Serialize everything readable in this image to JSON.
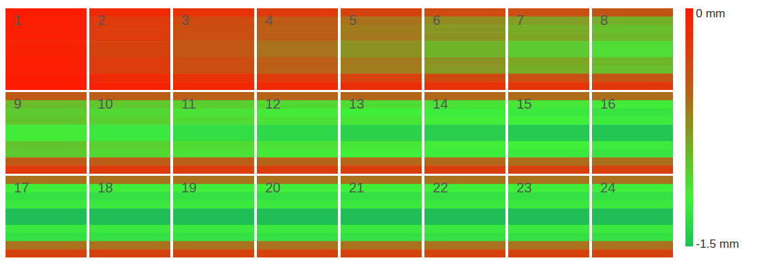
{
  "chart_data": {
    "type": "heatmap",
    "panels": [
      {
        "label": "1",
        "cells": [
          -0.02,
          -0.04,
          -0.04,
          -0.04,
          -0.05,
          -0.05,
          -0.04,
          -0.04,
          -0.02,
          -0.01
        ]
      },
      {
        "label": "2",
        "cells": [
          -0.12,
          -0.24,
          -0.26,
          -0.25,
          -0.3,
          -0.3,
          -0.25,
          -0.26,
          -0.12,
          -0.06
        ]
      },
      {
        "label": "3",
        "cells": [
          -0.18,
          -0.36,
          -0.39,
          -0.38,
          -0.45,
          -0.45,
          -0.38,
          -0.39,
          -0.18,
          -0.09
        ]
      },
      {
        "label": "4",
        "cells": [
          -0.24,
          -0.48,
          -0.52,
          -0.5,
          -0.6,
          -0.6,
          -0.5,
          -0.52,
          -0.24,
          -0.12
        ]
      },
      {
        "label": "5",
        "cells": [
          -0.3,
          -0.6,
          -0.65,
          -0.63,
          -0.75,
          -0.75,
          -0.63,
          -0.65,
          -0.3,
          -0.15
        ]
      },
      {
        "label": "6",
        "cells": [
          -0.36,
          -0.72,
          -0.78,
          -0.75,
          -0.9,
          -0.9,
          -0.75,
          -0.78,
          -0.36,
          -0.18
        ]
      },
      {
        "label": "7",
        "cells": [
          -0.4,
          -0.8,
          -0.87,
          -0.84,
          -1.01,
          -1.01,
          -0.84,
          -0.87,
          -0.4,
          -0.2
        ]
      },
      {
        "label": "8",
        "cells": [
          -0.44,
          -0.88,
          -0.95,
          -0.91,
          -1.1,
          -1.1,
          -0.91,
          -0.95,
          -0.44,
          -0.22
        ]
      },
      {
        "label": "9",
        "cells": [
          -0.47,
          -0.94,
          -1.01,
          -0.98,
          -1.17,
          -1.17,
          -0.98,
          -1.01,
          -0.47,
          -0.23
        ]
      },
      {
        "label": "10",
        "cells": [
          -0.5,
          -1,
          -1.08,
          -1.04,
          -1.25,
          -1.25,
          -1.04,
          -1.08,
          -0.5,
          -0.25
        ]
      },
      {
        "label": "11",
        "cells": [
          -0.52,
          -1.04,
          -1.13,
          -1.09,
          -1.31,
          -1.31,
          -1.09,
          -1.13,
          -0.52,
          -0.26
        ]
      },
      {
        "label": "12",
        "cells": [
          -0.54,
          -1.08,
          -1.17,
          -1.13,
          -1.35,
          -1.35,
          -1.13,
          -1.17,
          -0.54,
          -0.27
        ]
      },
      {
        "label": "13",
        "cells": [
          -0.55,
          -1.1,
          -1.2,
          -1.15,
          -1.38,
          -1.38,
          -1.15,
          -1.2,
          -0.55,
          -0.28
        ]
      },
      {
        "label": "14",
        "cells": [
          -0.56,
          -1.13,
          -1.22,
          -1.18,
          -1.41,
          -1.41,
          -1.18,
          -1.22,
          -0.56,
          -0.28
        ]
      },
      {
        "label": "15",
        "cells": [
          -0.58,
          -1.15,
          -1.25,
          -1.2,
          -1.44,
          -1.44,
          -1.2,
          -1.25,
          -0.58,
          -0.29
        ]
      },
      {
        "label": "16",
        "cells": [
          -0.59,
          -1.18,
          -1.27,
          -1.23,
          -1.47,
          -1.47,
          -1.23,
          -1.27,
          -0.59,
          -0.29
        ]
      },
      {
        "label": "17",
        "cells": [
          -0.6,
          -1.2,
          -1.3,
          -1.25,
          -1.5,
          -1.5,
          -1.25,
          -1.3,
          -0.6,
          -0.3
        ]
      },
      {
        "label": "18",
        "cells": [
          -0.6,
          -1.2,
          -1.3,
          -1.25,
          -1.5,
          -1.5,
          -1.25,
          -1.3,
          -0.6,
          -0.3
        ]
      },
      {
        "label": "19",
        "cells": [
          -0.6,
          -1.2,
          -1.3,
          -1.25,
          -1.5,
          -1.5,
          -1.25,
          -1.3,
          -0.6,
          -0.3
        ]
      },
      {
        "label": "20",
        "cells": [
          -0.6,
          -1.2,
          -1.3,
          -1.25,
          -1.5,
          -1.5,
          -1.25,
          -1.3,
          -0.6,
          -0.3
        ]
      },
      {
        "label": "21",
        "cells": [
          -0.6,
          -1.2,
          -1.3,
          -1.25,
          -1.5,
          -1.5,
          -1.25,
          -1.3,
          -0.6,
          -0.3
        ]
      },
      {
        "label": "22",
        "cells": [
          -0.6,
          -1.2,
          -1.3,
          -1.25,
          -1.5,
          -1.5,
          -1.25,
          -1.3,
          -0.6,
          -0.3
        ]
      },
      {
        "label": "23",
        "cells": [
          -0.6,
          -1.2,
          -1.3,
          -1.25,
          -1.5,
          -1.5,
          -1.25,
          -1.3,
          -0.6,
          -0.3
        ]
      },
      {
        "label": "24",
        "cells": [
          -0.6,
          -1.2,
          -1.3,
          -1.25,
          -1.5,
          -1.5,
          -1.25,
          -1.3,
          -0.6,
          -0.3
        ]
      }
    ],
    "colorbar": {
      "range": [
        0,
        -1.5
      ],
      "ticks": [
        {
          "value": 0,
          "label": "0 mm"
        },
        {
          "value": -1.5,
          "label": "-1.5 mm"
        }
      ]
    }
  }
}
